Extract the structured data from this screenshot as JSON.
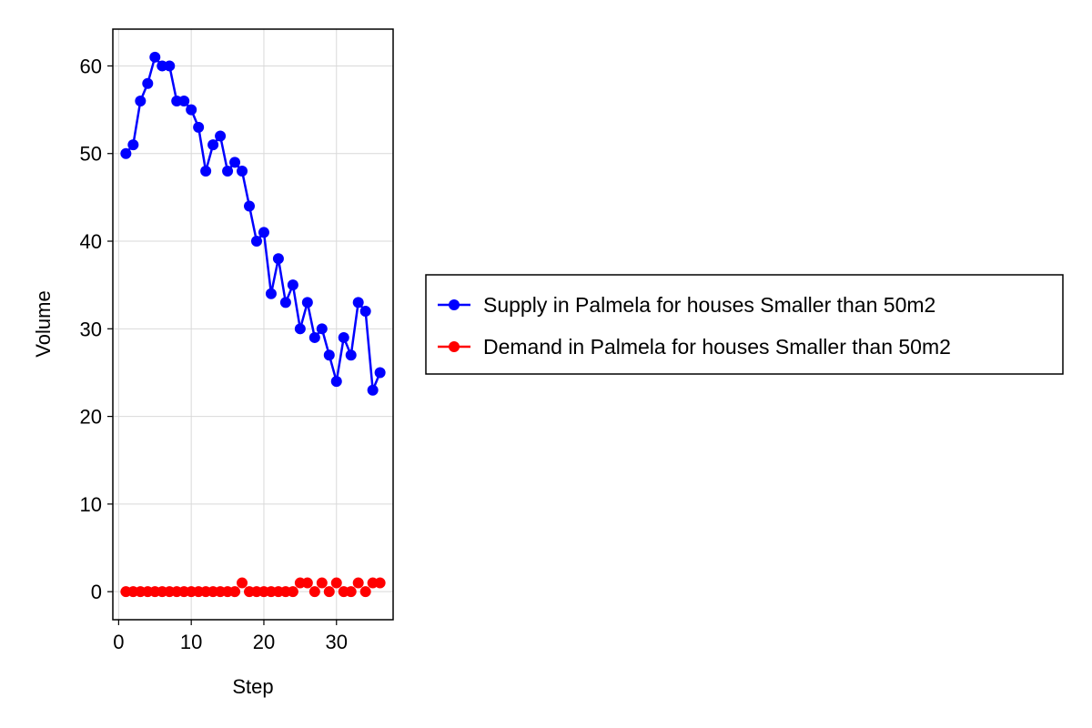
{
  "chart_data": {
    "type": "line",
    "title": "",
    "xlabel": "Step",
    "ylabel": "Volume",
    "xlim": [
      -0.8,
      37.8
    ],
    "ylim": [
      -3.2,
      64.2
    ],
    "xticks": [
      0,
      10,
      20,
      30
    ],
    "yticks": [
      0,
      10,
      20,
      30,
      40,
      50,
      60
    ],
    "grid": true,
    "legend_position": "right",
    "x": [
      1,
      2,
      3,
      4,
      5,
      6,
      7,
      8,
      9,
      10,
      11,
      12,
      13,
      14,
      15,
      16,
      17,
      18,
      19,
      20,
      21,
      22,
      23,
      24,
      25,
      26,
      27,
      28,
      29,
      30,
      31,
      32,
      33,
      34,
      35,
      36
    ],
    "series": [
      {
        "name": "Supply in Palmela for houses Smaller than 50m2",
        "color": "#0000ff",
        "line": true,
        "values": [
          50,
          51,
          56,
          58,
          61,
          60,
          60,
          56,
          56,
          55,
          53,
          48,
          51,
          52,
          48,
          49,
          48,
          44,
          40,
          41,
          34,
          38,
          33,
          35,
          30,
          33,
          29,
          30,
          27,
          24,
          29,
          27,
          33,
          32,
          23,
          25
        ]
      },
      {
        "name": "Demand in Palmela for houses Smaller than 50m2",
        "color": "#ff0000",
        "line": false,
        "values": [
          0,
          0,
          0,
          0,
          0,
          0,
          0,
          0,
          0,
          0,
          0,
          0,
          0,
          0,
          0,
          0,
          1,
          0,
          0,
          0,
          0,
          0,
          0,
          0,
          1,
          1,
          0,
          1,
          0,
          1,
          0,
          0,
          1,
          0,
          1,
          1
        ]
      }
    ]
  }
}
